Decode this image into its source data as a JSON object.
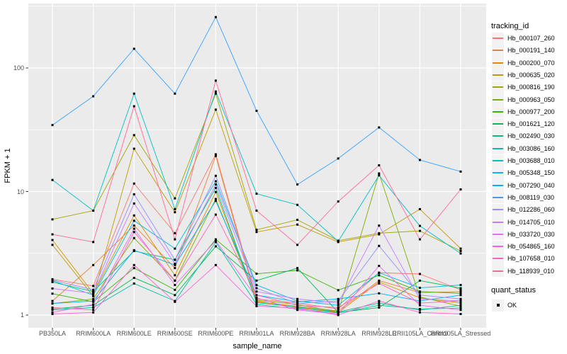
{
  "chart_data": {
    "type": "line",
    "title": "",
    "xlabel": "sample_name",
    "ylabel": "FPKM + 1",
    "y_scale": "log10",
    "y_tick_labels": [
      "1",
      "10",
      "100"
    ],
    "y_tick_values": [
      1,
      10,
      100
    ],
    "y_minor_tick_values": [
      3.162,
      31.62,
      316.2
    ],
    "x_categories": [
      "PB350LA",
      "RRIM600LA",
      "RRIM600LE",
      "RRIM600SE",
      "RRIM600PE",
      "RRIM901LA",
      "RRIM928BA",
      "RRIM928LA",
      "RRIM928LE",
      "RRII105LA_Control",
      "RRII105LA_Stressed"
    ],
    "legend": {
      "title": "tracking_id"
    },
    "quant_legend": {
      "title": "quant_status",
      "items": [
        {
          "label": "OK",
          "marker": "black-square"
        }
      ]
    },
    "style": {
      "panel_bg": "#EBEBEB",
      "grid_color": "#FFFFFF",
      "tick_color": "#333333",
      "tick_label_color": "#4D4D4D",
      "point_color": "#000000",
      "legend_key_bg": "#F2F2F2"
    },
    "series": [
      {
        "name": "Hb_000107_260",
        "color": "#F8766D",
        "values": [
          1.95,
          1.72,
          11.6,
          4.6,
          20.0,
          1.35,
          1.25,
          1.12,
          2.2,
          2.15,
          1.6
        ]
      },
      {
        "name": "Hb_000191_140",
        "color": "#EA8331",
        "values": [
          1.3,
          2.54,
          5.3,
          2.4,
          19.4,
          1.28,
          1.18,
          1.08,
          1.9,
          1.52,
          1.55
        ]
      },
      {
        "name": "Hb_000200_070",
        "color": "#D89000",
        "values": [
          4.05,
          1.5,
          6.4,
          2.1,
          9.9,
          1.3,
          1.15,
          1.05,
          1.85,
          1.38,
          1.25
        ]
      },
      {
        "name": "Hb_000635_020",
        "color": "#C09B00",
        "values": [
          3.7,
          1.42,
          22.2,
          6.8,
          46.0,
          4.7,
          5.4,
          3.9,
          4.5,
          7.2,
          3.45
        ]
      },
      {
        "name": "Hb_000816_190",
        "color": "#A3A500",
        "values": [
          5.95,
          7.0,
          28.6,
          8.8,
          62.0,
          4.9,
          5.9,
          4.0,
          4.6,
          4.8,
          3.3
        ]
      },
      {
        "name": "Hb_000963_050",
        "color": "#7CAE00",
        "values": [
          1.24,
          1.35,
          4.2,
          1.9,
          8.7,
          1.32,
          1.22,
          1.06,
          14.0,
          1.4,
          1.18
        ]
      },
      {
        "name": "Hb_000977_200",
        "color": "#39B600",
        "values": [
          1.49,
          1.28,
          2.4,
          1.6,
          4.1,
          2.16,
          2.3,
          1.59,
          2.1,
          1.55,
          1.5
        ]
      },
      {
        "name": "Hb_001621_120",
        "color": "#00BB4E",
        "values": [
          1.12,
          1.2,
          2.0,
          1.45,
          3.6,
          1.9,
          2.4,
          1.05,
          1.15,
          1.9,
          1.65
        ]
      },
      {
        "name": "Hb_002490_030",
        "color": "#00BF7D",
        "values": [
          1.85,
          1.55,
          3.3,
          2.8,
          10.7,
          1.26,
          1.16,
          1.06,
          1.25,
          1.1,
          1.2
        ]
      },
      {
        "name": "Hb_003086_160",
        "color": "#00C1A3",
        "values": [
          1.1,
          1.15,
          1.8,
          1.3,
          3.9,
          1.22,
          1.12,
          1.04,
          1.2,
          1.12,
          1.14
        ]
      },
      {
        "name": "Hb_003688_010",
        "color": "#00BFC4",
        "values": [
          12.4,
          7.0,
          62.0,
          7.2,
          64.5,
          9.6,
          7.8,
          3.95,
          13.5,
          5.27,
          3.15
        ]
      },
      {
        "name": "Hb_005348_150",
        "color": "#00BAE0",
        "values": [
          1.9,
          1.45,
          5.8,
          3.45,
          12.1,
          1.75,
          1.3,
          1.2,
          2.2,
          1.66,
          1.75
        ]
      },
      {
        "name": "Hb_007290_040",
        "color": "#00B0F6",
        "values": [
          1.24,
          1.3,
          3.35,
          2.54,
          8.4,
          1.45,
          1.28,
          1.35,
          1.5,
          1.3,
          1.45
        ]
      },
      {
        "name": "Hb_008119_030",
        "color": "#35A2FF",
        "values": [
          34.5,
          59.0,
          143.0,
          62.0,
          258.0,
          45.0,
          11.4,
          18.5,
          33.0,
          18.0,
          14.5
        ]
      },
      {
        "name": "Hb_012286_060",
        "color": "#9590FF",
        "values": [
          1.92,
          1.6,
          9.5,
          2.8,
          13.4,
          1.65,
          1.24,
          1.3,
          3.63,
          1.45,
          1.35
        ]
      },
      {
        "name": "Hb_014705_010",
        "color": "#C77CFF",
        "values": [
          1.64,
          1.5,
          8.0,
          2.6,
          11.4,
          1.55,
          1.35,
          1.25,
          5.3,
          1.35,
          1.3
        ]
      },
      {
        "name": "Hb_033720_030",
        "color": "#E76BF3",
        "values": [
          1.05,
          1.22,
          5.0,
          1.75,
          4.0,
          1.38,
          1.1,
          1.02,
          2.5,
          1.2,
          1.1
        ]
      },
      {
        "name": "Hb_054865_160",
        "color": "#FA62DB",
        "values": [
          1.02,
          1.05,
          2.54,
          1.28,
          2.54,
          1.18,
          1.14,
          1.0,
          1.3,
          1.05,
          1.02
        ]
      },
      {
        "name": "Hb_107658_010",
        "color": "#FF62BC",
        "values": [
          1.15,
          1.1,
          4.7,
          1.9,
          6.5,
          1.45,
          1.2,
          1.15,
          1.8,
          1.25,
          1.3
        ]
      },
      {
        "name": "Hb_118939_010",
        "color": "#FF6A98",
        "values": [
          4.5,
          3.9,
          49.0,
          4.1,
          79.0,
          7.0,
          3.7,
          8.3,
          16.3,
          4.1,
          10.4
        ]
      }
    ]
  }
}
